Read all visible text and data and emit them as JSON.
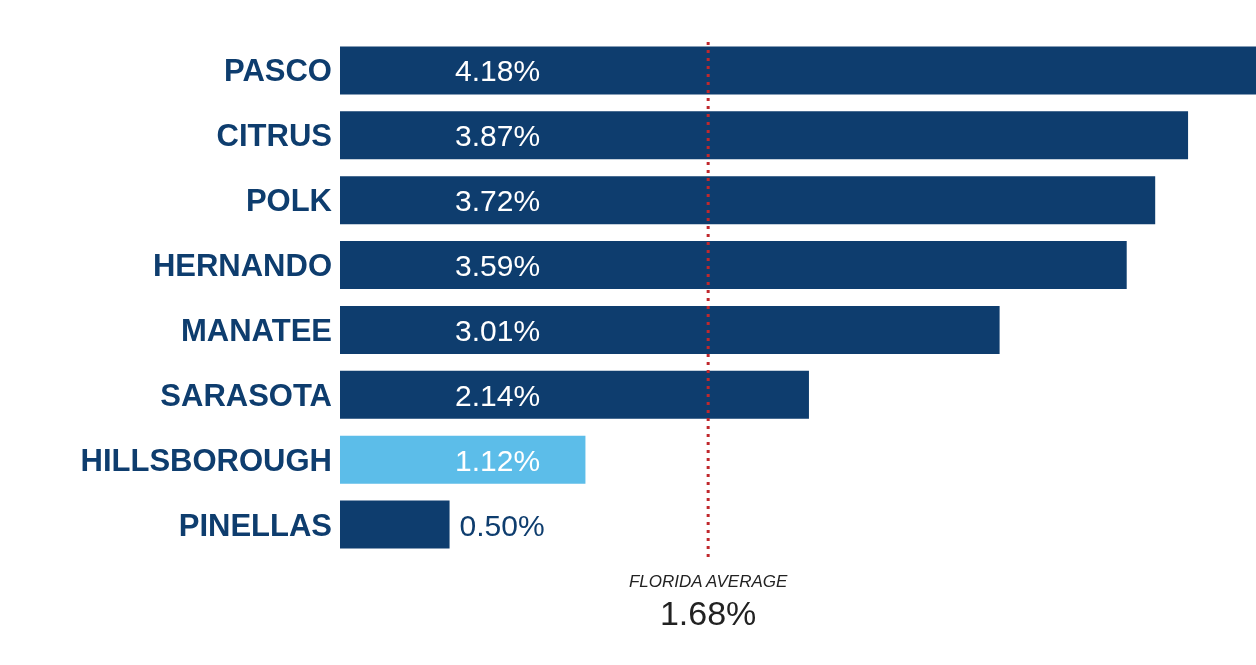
{
  "chart_data": {
    "type": "bar",
    "orientation": "horizontal",
    "categories": [
      "PASCO",
      "CITRUS",
      "POLK",
      "HERNANDO",
      "MANATEE",
      "SARASOTA",
      "HILLSBOROUGH",
      "PINELLAS"
    ],
    "values": [
      4.18,
      3.87,
      3.72,
      3.59,
      3.01,
      2.14,
      1.12,
      0.5
    ],
    "value_labels": [
      "4.18%",
      "3.87%",
      "3.72%",
      "3.59%",
      "3.01%",
      "2.14%",
      "1.12%",
      "0.50%"
    ],
    "colors": [
      "#0e3d6e",
      "#0e3d6e",
      "#0e3d6e",
      "#0e3d6e",
      "#0e3d6e",
      "#0e3d6e",
      "#5cbde9",
      "#0e3d6e"
    ],
    "ref_lines": [
      {
        "axis": "x",
        "value": 1.68,
        "label": "FLORIDA AVERAGE",
        "color": "#c0282d",
        "line_style": "dotted"
      }
    ],
    "annotations": [
      "1.68%"
    ]
  }
}
